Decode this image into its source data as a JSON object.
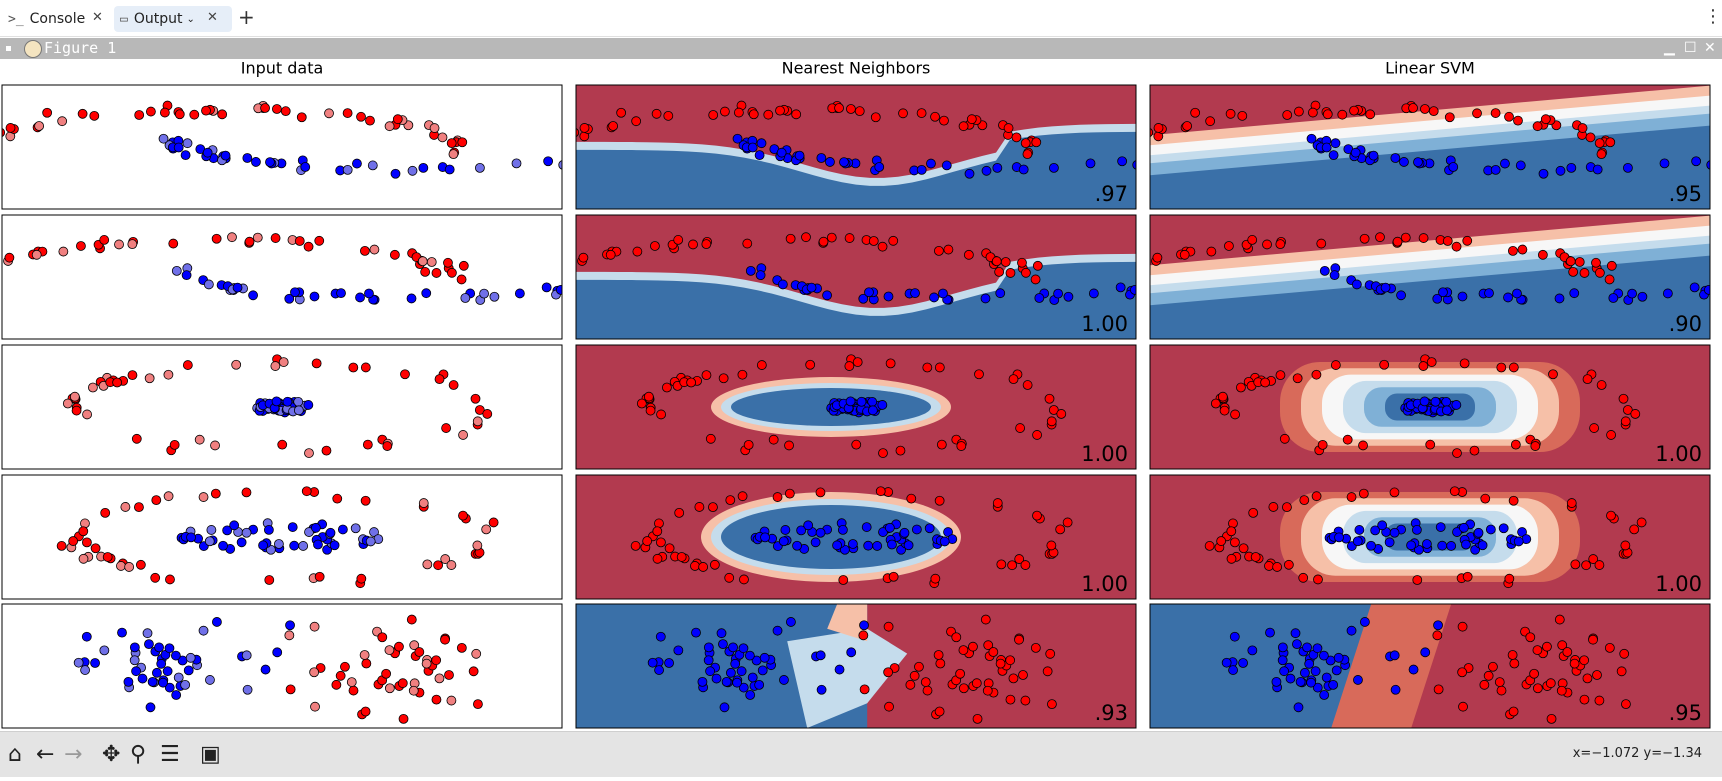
{
  "tabs": [
    {
      "label": "Console",
      "icon": "terminal-icon"
    },
    {
      "label": "Output",
      "icon": "monitor-icon"
    }
  ],
  "figure_title": "Figure 1",
  "status": {
    "coords": "x=−1.072 y=−1.34"
  },
  "colors": {
    "red_region": "#b23a4f",
    "blue_region": "#3a70a8",
    "red_point": "#ff0000",
    "blue_point": "#0000ff"
  },
  "chart_data": {
    "type": "scatter",
    "columns": [
      "Input data",
      "Nearest Neighbors",
      "Linear SVM"
    ],
    "rows": [
      {
        "dataset": "moons",
        "scores": [
          ".97",
          ".95"
        ]
      },
      {
        "dataset": "moons",
        "scores": [
          "1.00",
          ".90"
        ]
      },
      {
        "dataset": "circles",
        "scores": [
          "1.00",
          "1.00"
        ]
      },
      {
        "dataset": "circles",
        "scores": [
          "1.00",
          "1.00"
        ]
      },
      {
        "dataset": "linearly_separable",
        "scores": [
          ".93",
          ".95"
        ]
      }
    ],
    "xlim": [
      -2.6,
      2.6
    ],
    "ylim": [
      -1.2,
      1.2
    ],
    "grid": false,
    "legend": "none"
  }
}
